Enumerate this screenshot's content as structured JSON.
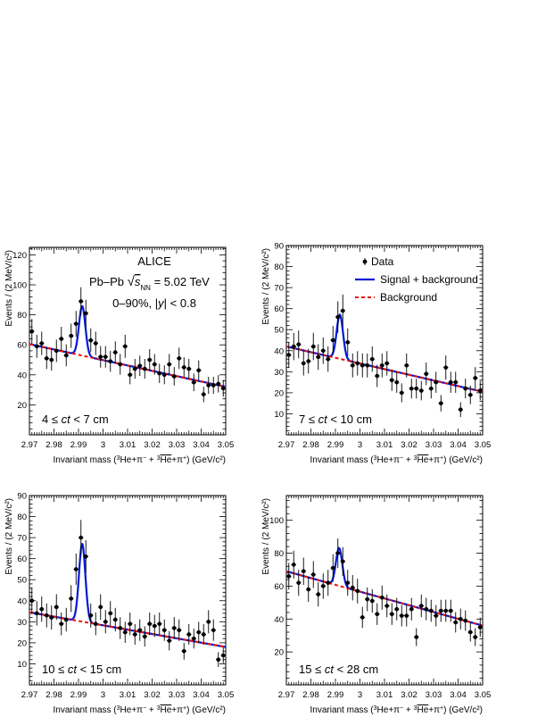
{
  "colors": {
    "data": "#000000",
    "fit": "#0018d6",
    "background": "#e8140c",
    "axis": "#000000"
  },
  "panel_text": {
    "experiment": "ALICE",
    "system_prefix": "Pb–Pb",
    "sqrt_symbol": "√",
    "sqrt_s": "s",
    "sqrt_sub": "NN",
    "energy": "= 5.02 TeV",
    "centrality": "0–90%, |y| < 0.8"
  },
  "axis_text": {
    "ylabel": "Events / (2 MeV/c²)",
    "xlabel_prefix": "Invariant mass (",
    "xlabel_sup3": "3",
    "xlabel_he": "He+π",
    "xlabel_minus": "−",
    "xlabel_plus_sep": " + ",
    "xlabel_sup3b": "3",
    "xlabel_antihe": "He",
    "xlabel_plus2": "+π",
    "xlabel_plus": "+",
    "xlabel_suffix": ") (GeV/c²)"
  },
  "chart_data": [
    {
      "type": "scatter",
      "ct_label": "4 ≤ ct < 7 cm",
      "xlim": [
        2.97,
        3.05
      ],
      "ylim": [
        0,
        125
      ],
      "xticks": [
        "2.97",
        "2.98",
        "2.99",
        "3",
        "3.01",
        "3.02",
        "3.03",
        "3.04",
        "3.05"
      ],
      "yticks": [
        "20",
        "40",
        "60",
        "80",
        "100",
        "120"
      ],
      "fit": {
        "bg_start": 60.5,
        "bg_end": 32.0,
        "peak_mu": 2.9915,
        "peak_amp": 33,
        "peak_sigma": 0.0013
      },
      "series": [
        {
          "name": "Data",
          "x": [
            2.971,
            2.973,
            2.975,
            2.977,
            2.979,
            2.981,
            2.983,
            2.985,
            2.987,
            2.989,
            2.991,
            2.993,
            2.995,
            2.997,
            2.999,
            3.001,
            3.003,
            3.005,
            3.007,
            3.009,
            3.011,
            3.013,
            3.015,
            3.017,
            3.019,
            3.021,
            3.023,
            3.025,
            3.027,
            3.029,
            3.031,
            3.033,
            3.035,
            3.037,
            3.039,
            3.041,
            3.043,
            3.045,
            3.047,
            3.049
          ],
          "y": [
            69,
            59,
            61,
            51,
            50,
            56,
            64,
            53,
            66,
            74,
            89,
            81,
            63,
            61,
            52,
            52,
            49,
            55,
            47,
            59,
            40,
            44,
            46,
            44,
            50,
            47,
            41,
            40,
            47,
            39,
            51,
            45,
            44,
            35,
            43,
            27,
            33,
            33,
            34,
            31
          ],
          "err": [
            8.3,
            7.7,
            7.8,
            7.1,
            7.1,
            7.5,
            8,
            7.3,
            8.1,
            8.6,
            9.4,
            9,
            7.9,
            7.8,
            7.2,
            7.2,
            7,
            7.4,
            6.9,
            7.7,
            6.3,
            6.6,
            6.8,
            6.6,
            7.1,
            6.9,
            6.4,
            6.3,
            6.9,
            6.2,
            7.1,
            6.7,
            6.6,
            5.9,
            6.6,
            5.2,
            5.7,
            5.7,
            5.8,
            5.6
          ]
        }
      ]
    },
    {
      "type": "scatter",
      "ct_label": "7 ≤ ct < 10 cm",
      "xlim": [
        2.97,
        3.05
      ],
      "ylim": [
        0,
        90
      ],
      "xticks": [
        "2.97",
        "2.98",
        "2.99",
        "3",
        "3.01",
        "3.02",
        "3.03",
        "3.04",
        "3.05"
      ],
      "yticks": [
        "10",
        "20",
        "30",
        "40",
        "50",
        "60",
        "70",
        "80",
        "90"
      ],
      "fit": {
        "bg_start": 42.0,
        "bg_end": 20.5,
        "peak_mu": 2.9918,
        "peak_amp": 21,
        "peak_sigma": 0.0013
      },
      "series": [
        {
          "name": "Data",
          "x": [
            2.971,
            2.973,
            2.975,
            2.977,
            2.979,
            2.981,
            2.983,
            2.985,
            2.987,
            2.989,
            2.991,
            2.993,
            2.995,
            2.997,
            2.999,
            3.001,
            3.003,
            3.005,
            3.007,
            3.009,
            3.011,
            3.013,
            3.015,
            3.017,
            3.019,
            3.021,
            3.023,
            3.025,
            3.027,
            3.029,
            3.031,
            3.033,
            3.035,
            3.037,
            3.039,
            3.041,
            3.043,
            3.045,
            3.047,
            3.049
          ],
          "y": [
            38,
            42,
            43,
            34,
            35,
            42,
            37,
            40,
            36,
            45,
            56,
            59,
            44,
            33,
            34,
            33,
            33,
            36,
            28,
            33,
            34,
            26,
            25,
            20,
            33,
            22,
            22,
            21,
            29,
            22,
            25,
            15,
            32,
            25,
            25,
            12,
            22,
            19,
            27,
            21
          ],
          "err": [
            6.2,
            6.5,
            6.6,
            5.8,
            5.9,
            6.5,
            6.1,
            6.3,
            6,
            6.7,
            7.5,
            7.7,
            6.6,
            5.7,
            5.8,
            5.7,
            5.7,
            6,
            5.3,
            5.7,
            5.8,
            5.1,
            5,
            4.5,
            5.7,
            4.7,
            4.7,
            4.6,
            5.4,
            4.7,
            5,
            3.9,
            5.7,
            5,
            5,
            3.5,
            4.7,
            4.4,
            5.2,
            4.6
          ]
        }
      ]
    },
    {
      "type": "scatter",
      "ct_label": "10 ≤ ct < 15 cm",
      "xlim": [
        2.97,
        3.05
      ],
      "ylim": [
        0,
        90
      ],
      "xticks": [
        "2.97",
        "2.98",
        "2.99",
        "3",
        "3.01",
        "3.02",
        "3.03",
        "3.04",
        "3.05"
      ],
      "yticks": [
        "10",
        "20",
        "30",
        "40",
        "50",
        "60",
        "70",
        "80",
        "90"
      ],
      "fit": {
        "bg_start": 34.5,
        "bg_end": 18.0,
        "peak_mu": 2.9915,
        "peak_amp": 37,
        "peak_sigma": 0.0013
      },
      "series": [
        {
          "name": "Data",
          "x": [
            2.971,
            2.973,
            2.975,
            2.977,
            2.979,
            2.981,
            2.983,
            2.985,
            2.987,
            2.989,
            2.991,
            2.993,
            2.995,
            2.997,
            2.999,
            3.001,
            3.003,
            3.005,
            3.007,
            3.009,
            3.011,
            3.013,
            3.015,
            3.017,
            3.019,
            3.021,
            3.023,
            3.025,
            3.027,
            3.029,
            3.031,
            3.033,
            3.035,
            3.037,
            3.039,
            3.041,
            3.043,
            3.045,
            3.047,
            3.049
          ],
          "y": [
            40,
            34,
            36,
            33,
            32,
            37,
            29,
            31,
            41,
            55,
            70,
            61,
            33,
            29,
            37,
            30,
            34,
            31,
            27,
            25,
            29,
            24,
            26,
            23,
            29,
            28,
            29,
            26,
            21,
            27,
            26,
            16,
            24,
            22,
            25,
            24,
            30,
            26,
            12,
            14
          ],
          "err": [
            6.3,
            5.8,
            6,
            5.7,
            5.7,
            6.1,
            5.4,
            5.6,
            6.4,
            7.4,
            8.4,
            7.8,
            5.7,
            5.4,
            6.1,
            5.5,
            5.8,
            5.6,
            5.2,
            5,
            5.4,
            4.9,
            5.1,
            4.8,
            5.4,
            5.3,
            5.4,
            5.1,
            4.6,
            5.2,
            5.1,
            4,
            4.9,
            4.7,
            5,
            4.9,
            5.5,
            5.1,
            3.5,
            3.7
          ]
        }
      ]
    },
    {
      "type": "scatter",
      "ct_label": "15 ≤ ct < 28 cm",
      "xlim": [
        2.97,
        3.05
      ],
      "ylim": [
        0,
        115
      ],
      "xticks": [
        "2.97",
        "2.98",
        "2.99",
        "3",
        "3.01",
        "3.02",
        "3.03",
        "3.04",
        "3.05"
      ],
      "yticks": [
        "20",
        "40",
        "60",
        "80",
        "100"
      ],
      "fit": {
        "bg_start": 69.0,
        "bg_end": 36.0,
        "peak_mu": 2.9915,
        "peak_amp": 23,
        "peak_sigma": 0.0013
      },
      "series": [
        {
          "name": "Data",
          "x": [
            2.971,
            2.973,
            2.975,
            2.977,
            2.979,
            2.981,
            2.983,
            2.985,
            2.987,
            2.989,
            2.991,
            2.993,
            2.995,
            2.997,
            2.999,
            3.001,
            3.003,
            3.005,
            3.007,
            3.009,
            3.011,
            3.013,
            3.015,
            3.017,
            3.019,
            3.021,
            3.023,
            3.025,
            3.027,
            3.029,
            3.031,
            3.033,
            3.035,
            3.037,
            3.039,
            3.041,
            3.043,
            3.045,
            3.047,
            3.049
          ],
          "y": [
            66,
            73,
            62,
            69,
            58,
            67,
            55,
            60,
            62,
            71,
            80,
            75,
            62,
            59,
            57,
            41,
            52,
            51,
            43,
            53,
            48,
            43,
            46,
            42,
            42,
            46,
            29,
            48,
            46,
            45,
            42,
            45,
            45,
            45,
            38,
            40,
            39,
            32,
            29,
            35
          ],
          "err": [
            8.1,
            8.5,
            7.9,
            8.3,
            7.6,
            8.2,
            7.4,
            7.7,
            7.9,
            8.4,
            8.9,
            8.7,
            7.9,
            7.7,
            7.5,
            6.4,
            7.2,
            7.1,
            6.6,
            7.3,
            6.9,
            6.6,
            6.8,
            6.5,
            6.5,
            6.8,
            5.4,
            6.9,
            6.8,
            6.7,
            6.5,
            6.7,
            6.7,
            6.7,
            6.2,
            6.3,
            6.2,
            5.7,
            5.4,
            5.9
          ]
        }
      ]
    }
  ],
  "legend": {
    "placement": "top",
    "data": "Data",
    "signal": "Signal + background",
    "background": "Background"
  }
}
